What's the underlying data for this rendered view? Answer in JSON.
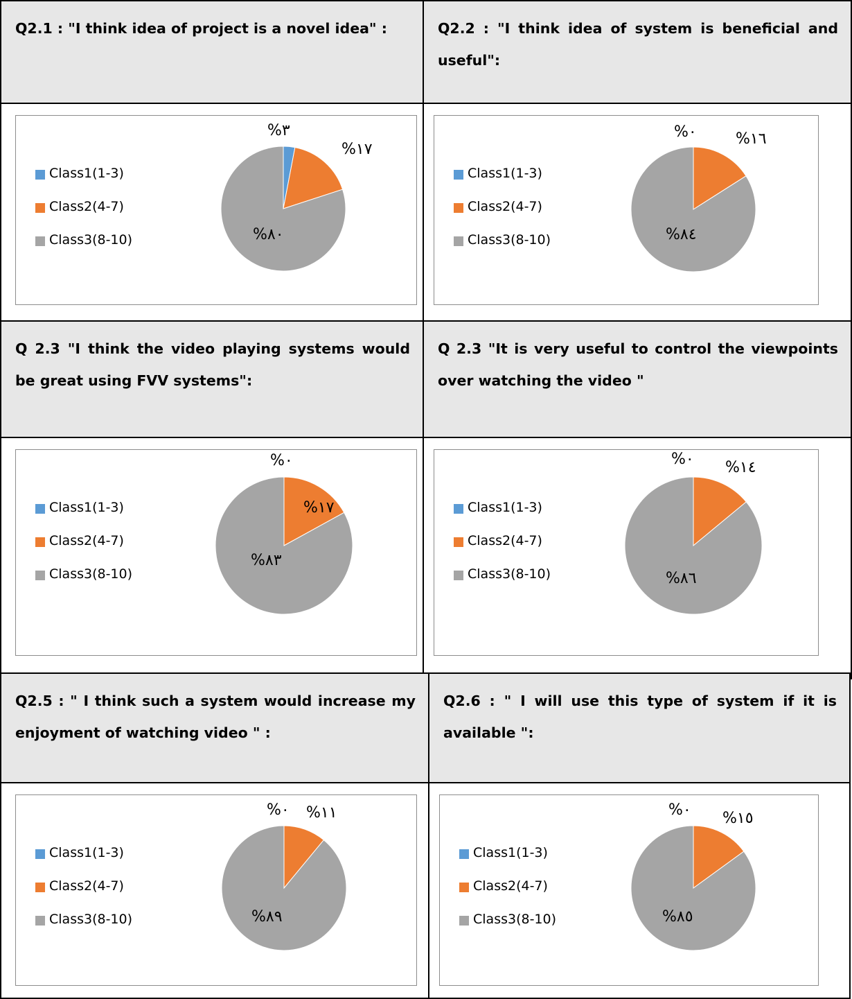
{
  "legend_labels": [
    "Class1(1-3)",
    "Class2(4-7)",
    "Class3(8-10)"
  ],
  "colors": {
    "class1": "#5b9bd5",
    "class2": "#ed7d31",
    "class3": "#a5a5a5"
  },
  "chart_data": [
    {
      "type": "pie",
      "title": "Q2.1 : \"I think idea of project is a novel idea\" :",
      "categories": [
        "Class1(1-3)",
        "Class2(4-7)",
        "Class3(8-10)"
      ],
      "values": [
        3,
        17,
        80
      ],
      "labels": [
        "%٣",
        "%١٧",
        "%٨٠"
      ],
      "legend_position": "left"
    },
    {
      "type": "pie",
      "title": "Q2.2 : \"I think idea of system is beneficial and useful\":",
      "categories": [
        "Class1(1-3)",
        "Class2(4-7)",
        "Class3(8-10)"
      ],
      "values": [
        0,
        16,
        84
      ],
      "labels": [
        "%٠",
        "%١٦",
        "%٨٤"
      ],
      "legend_position": "left"
    },
    {
      "type": "pie",
      "title": "Q 2.3 \"I think the video playing systems would be great using FVV systems\":",
      "categories": [
        "Class1(1-3)",
        "Class2(4-7)",
        "Class3(8-10)"
      ],
      "values": [
        0,
        17,
        83
      ],
      "labels": [
        "%٠",
        "%١٧",
        "%٨٣"
      ],
      "legend_position": "left"
    },
    {
      "type": "pie",
      "title": "Q 2.3 \"It is very useful to control the viewpoints over watching the video \"",
      "categories": [
        "Class1(1-3)",
        "Class2(4-7)",
        "Class3(8-10)"
      ],
      "values": [
        0,
        14,
        86
      ],
      "labels": [
        "%٠",
        "%١٤",
        "%٨٦"
      ],
      "legend_position": "left"
    },
    {
      "type": "pie",
      "title": "Q2.5 : \" I think such a system would increase my enjoyment of watching video \" :",
      "categories": [
        "Class1(1-3)",
        "Class2(4-7)",
        "Class3(8-10)"
      ],
      "values": [
        0,
        11,
        89
      ],
      "labels": [
        "%٠",
        "%١١",
        "%٨٩"
      ],
      "legend_position": "left"
    },
    {
      "type": "pie",
      "title": "Q2.6 : \" I will use this type of system if it is available \":",
      "categories": [
        "Class1(1-3)",
        "Class2(4-7)",
        "Class3(8-10)"
      ],
      "values": [
        0,
        15,
        85
      ],
      "labels": [
        "%٠",
        "%١٥",
        "%٨٥"
      ],
      "legend_position": "left"
    }
  ]
}
